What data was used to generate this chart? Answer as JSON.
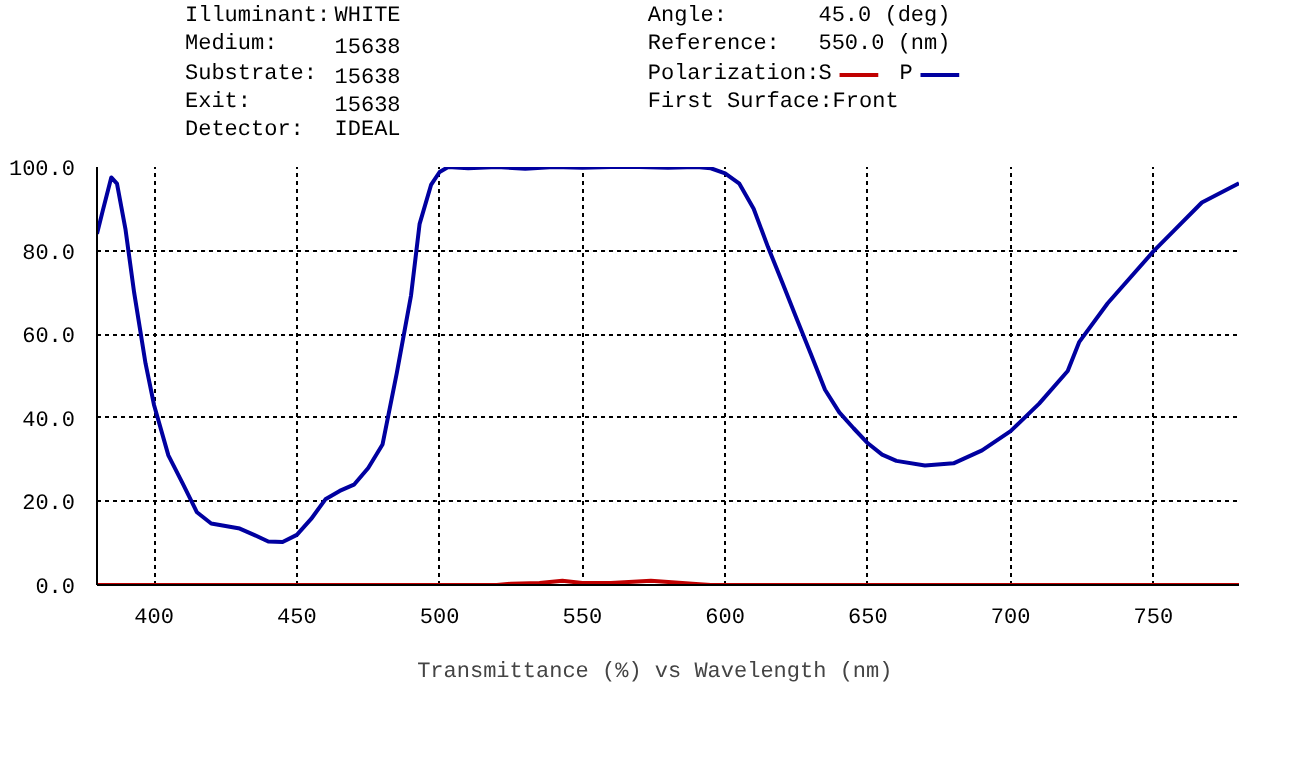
{
  "chart_data": {
    "type": "line",
    "xlabel": "Transmittance (%)  vs  Wavelength (nm)",
    "legend_title": "Polarization:",
    "annotations": [
      "Illuminant: WHITE",
      "Medium: 15638",
      "Substrate: 15638",
      "Exit: 15638",
      "Detector: IDEAL",
      "Angle: 45.0 (deg)",
      "Reference: 550.0 (nm)",
      "First Surface:Front"
    ],
    "series": [
      {
        "name": "S",
        "color": "#c00000",
        "x": [
          380,
          450,
          520,
          525,
          535,
          543,
          550,
          560,
          574,
          585,
          591,
          595,
          650,
          780
        ],
        "values": [
          0,
          0,
          0,
          0.3,
          0.5,
          1,
          0.5,
          0.5,
          1,
          0.5,
          0.2,
          0,
          0,
          0
        ]
      },
      {
        "name": "P",
        "color": "#0000a0",
        "x": [
          380,
          382,
          385,
          387,
          390,
          393,
          395,
          397,
          400,
          405,
          410,
          415,
          420,
          430,
          435,
          440,
          445,
          450,
          455,
          460,
          465,
          470,
          475,
          480,
          485,
          490,
          493,
          497,
          500,
          503,
          510,
          520,
          530,
          540,
          550,
          560,
          570,
          580,
          590,
          595,
          600,
          605,
          610,
          615,
          620,
          625,
          630,
          635,
          640,
          645,
          650,
          655,
          660,
          670,
          680,
          690,
          700,
          710,
          720,
          724,
          734,
          750,
          758,
          767,
          780
        ],
        "values": [
          84,
          89.5,
          97.5,
          96,
          85,
          70,
          61.5,
          53,
          43,
          31,
          24.3,
          17.4,
          14.7,
          13.5,
          12,
          10.4,
          10.3,
          12,
          15.8,
          20.5,
          22.5,
          24,
          28,
          33.6,
          50.7,
          69.3,
          86.4,
          95.7,
          98.8,
          100,
          99.7,
          100,
          99.6,
          100,
          99.8,
          100,
          100,
          99.8,
          100,
          99.7,
          98.5,
          96,
          90,
          80.9,
          72.4,
          63.8,
          55.3,
          46.7,
          41.3,
          37.5,
          33.9,
          31.2,
          29.7,
          28.6,
          29.1,
          32.2,
          36.8,
          43.4,
          51.2,
          58.1,
          67.4,
          79.8,
          85.3,
          91.5,
          96.1
        ]
      }
    ],
    "xlim": [
      380,
      780
    ],
    "ylim": [
      0,
      100
    ],
    "xticks": [
      400,
      450,
      500,
      550,
      600,
      650,
      700,
      750
    ],
    "yticks": [
      {
        "value": 0,
        "label": "0.0"
      },
      {
        "value": 20,
        "label": "20.0"
      },
      {
        "value": 40,
        "label": "40.0"
      },
      {
        "value": 60,
        "label": "60.0"
      },
      {
        "value": 80,
        "label": "80.0"
      },
      {
        "value": 100,
        "label": "100.0"
      }
    ],
    "grid": true,
    "legend": "top",
    "line_style": "solid"
  }
}
